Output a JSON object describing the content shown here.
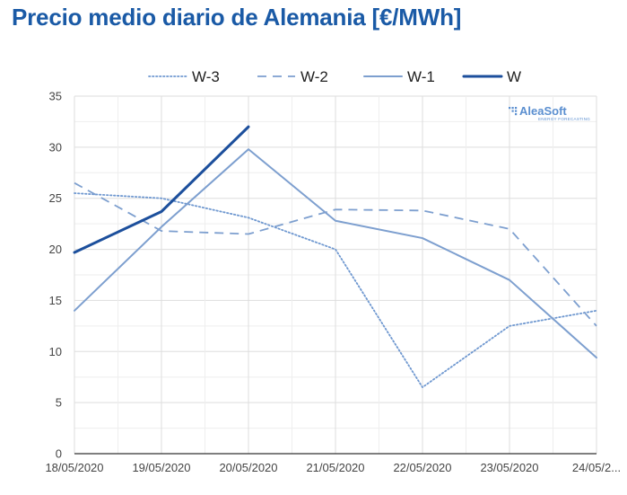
{
  "page_title": "Precio medio diario de Alemania [€/MWh]",
  "watermark": {
    "brand": "AleaSoft",
    "tagline": "ENERGY FORECASTING",
    "color": "#5b8fd0"
  },
  "chart_data": {
    "type": "line",
    "title": "Precio medio diario de Alemania [€/MWh]",
    "xlabel": "",
    "ylabel": "",
    "categories": [
      "18/05/2020",
      "19/05/2020",
      "20/05/2020",
      "21/05/2020",
      "22/05/2020",
      "23/05/2020",
      "24/05/2..."
    ],
    "ylim": [
      0,
      35
    ],
    "yticks": [
      0,
      5,
      10,
      15,
      20,
      25,
      30,
      35
    ],
    "grid": true,
    "legend_position": "top",
    "series": [
      {
        "name": "W-3",
        "style": "dotted",
        "color": "#6f98d0",
        "values": [
          25.5,
          25.0,
          23.1,
          20.0,
          6.5,
          12.5,
          14.0
        ]
      },
      {
        "name": "W-2",
        "style": "dashed",
        "color": "#7d9fcf",
        "values": [
          26.5,
          21.8,
          21.5,
          23.9,
          23.8,
          22.0,
          12.5
        ]
      },
      {
        "name": "W-1",
        "style": "solid",
        "color": "#7d9fcf",
        "values": [
          14.0,
          22.2,
          29.8,
          22.8,
          21.1,
          17.0,
          9.4
        ]
      },
      {
        "name": "W",
        "style": "solid-bold",
        "color": "#1c4f9c",
        "values": [
          19.7,
          23.7,
          32.0,
          null,
          null,
          null,
          null
        ]
      }
    ]
  }
}
